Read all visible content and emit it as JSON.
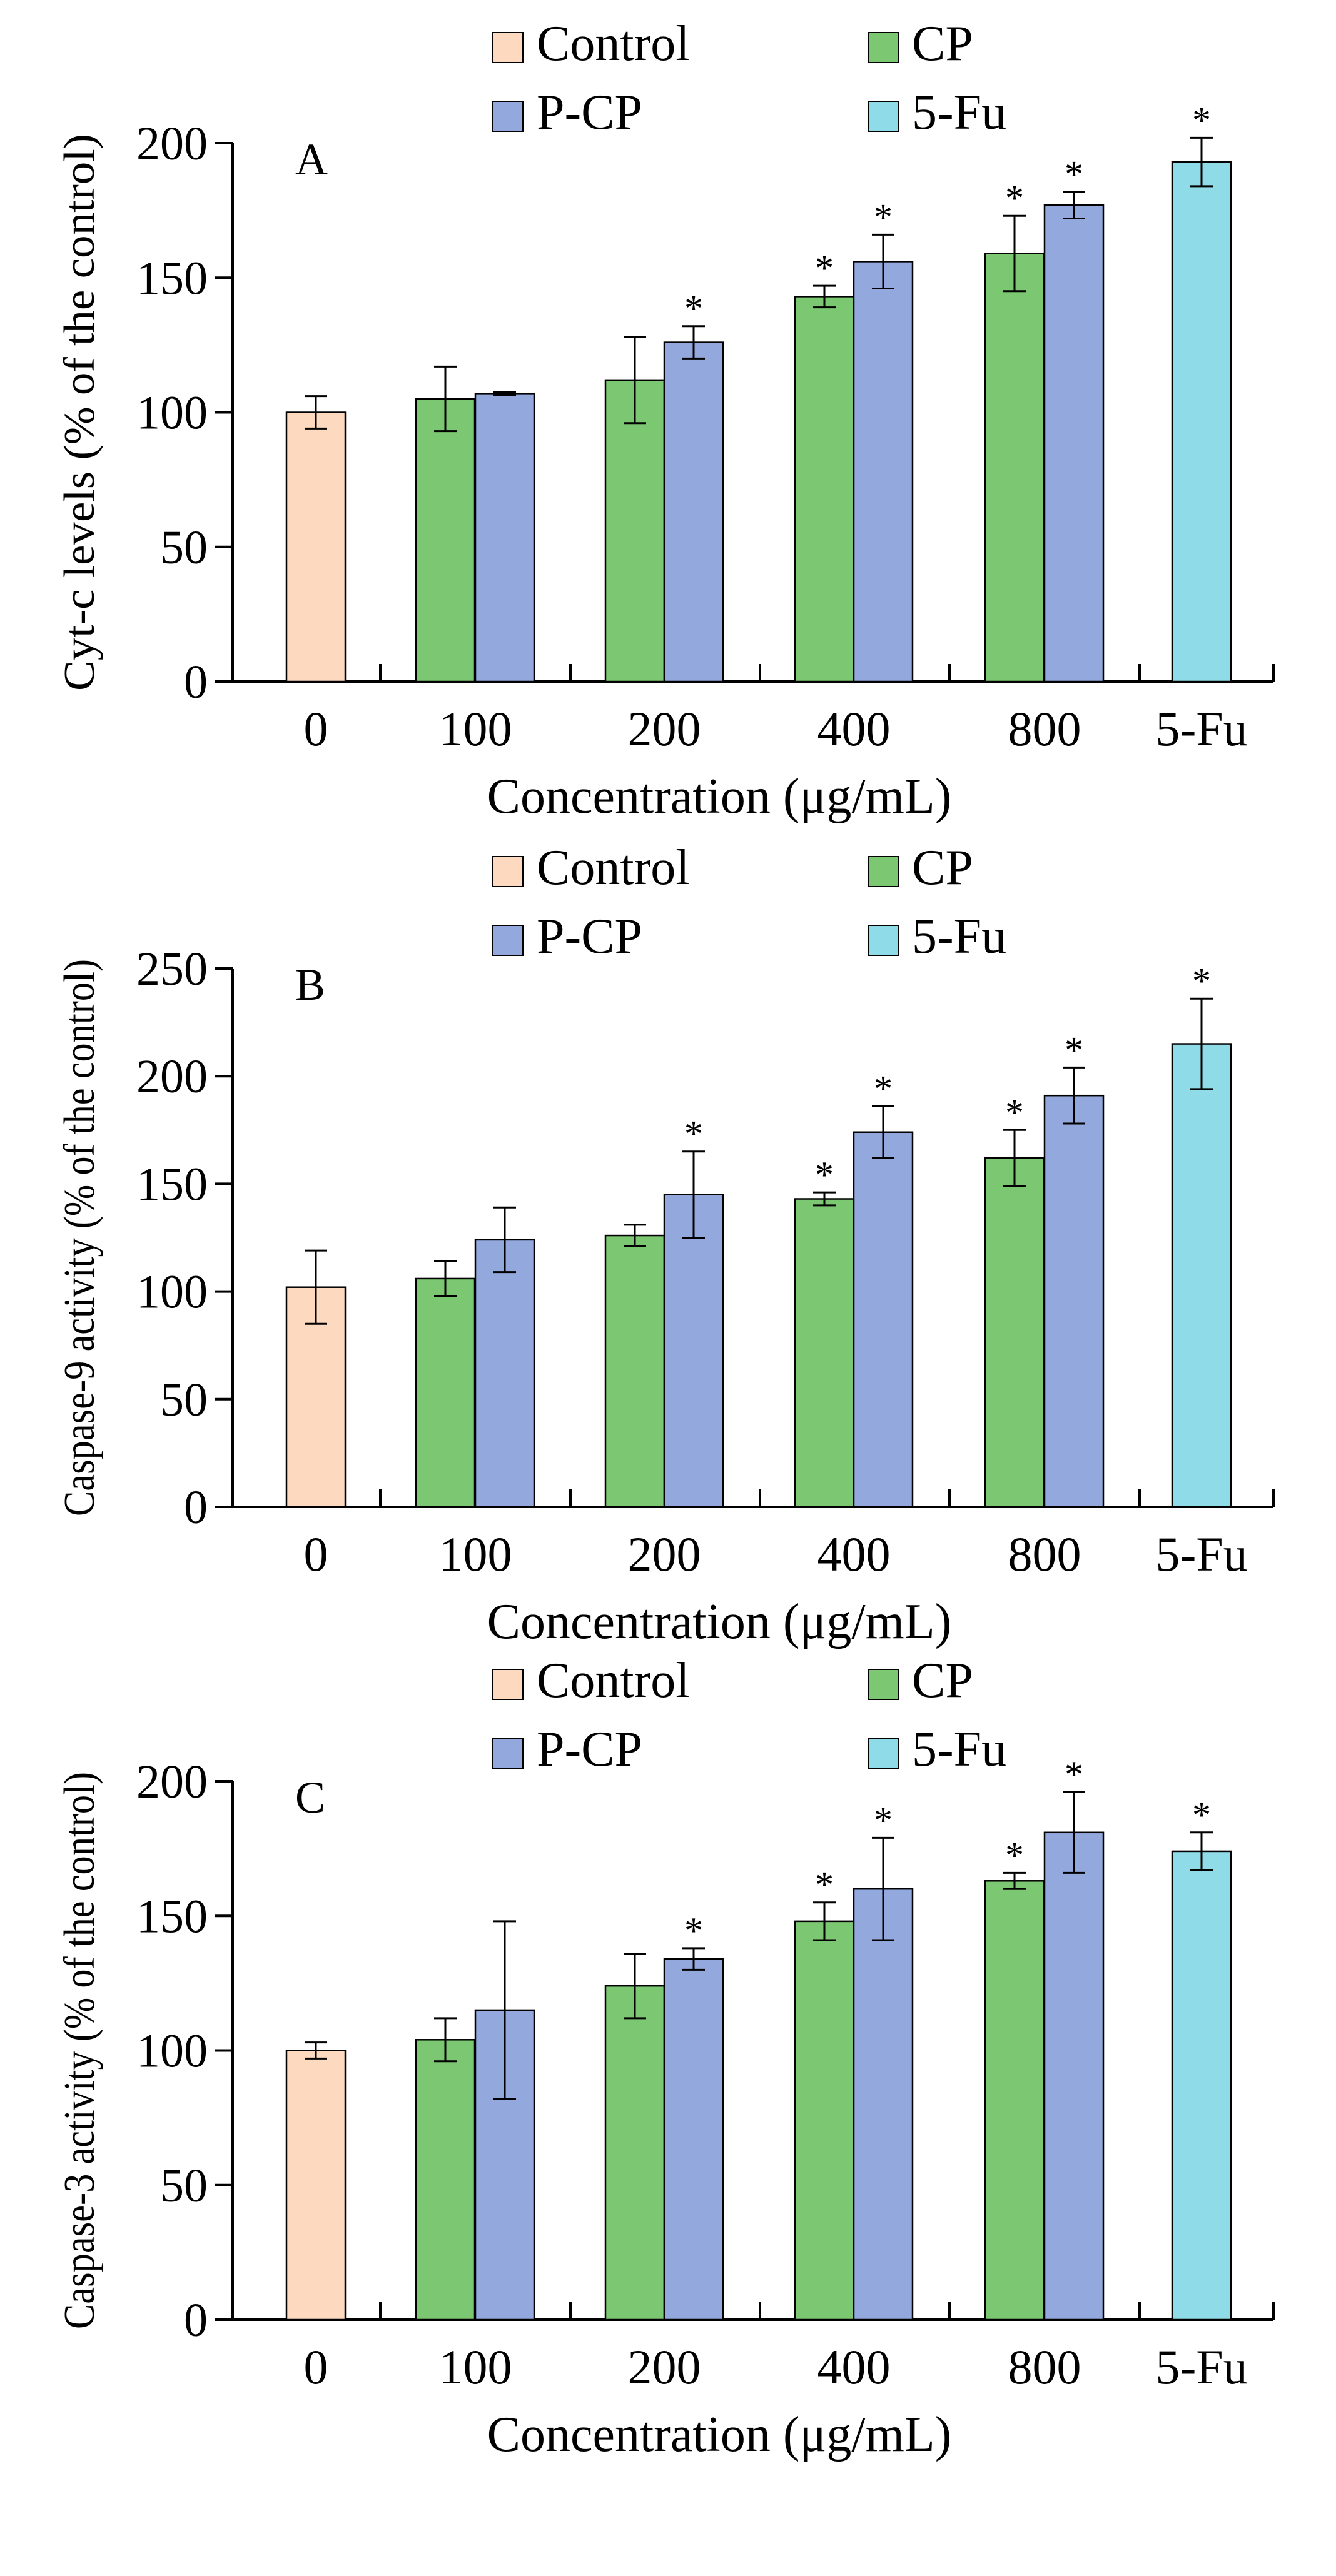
{
  "colors": {
    "Control": "#FDD9BF",
    "CP": "#7CC771",
    "P-CP": "#93A9DE",
    "5-Fu": "#8FDBE8",
    "axis": "#000000"
  },
  "legend": {
    "items": [
      {
        "name": "Control",
        "icon": "square-swatch"
      },
      {
        "name": "CP",
        "icon": "square-swatch"
      },
      {
        "name": "P-CP",
        "icon": "square-swatch"
      },
      {
        "name": "5-Fu",
        "icon": "square-swatch"
      }
    ]
  },
  "chart_data": [
    {
      "panel": "A",
      "type": "bar",
      "title": "",
      "xlabel": "Concentration (μg/mL)",
      "ylabel": "Cyt-c levels (% of the control)",
      "ylim": [
        0,
        200
      ],
      "yticks": [
        0,
        50,
        100,
        150,
        200
      ],
      "categories": [
        "0",
        "100",
        "200",
        "400",
        "800",
        "5-Fu"
      ],
      "bars": [
        {
          "series": "Control",
          "category": "0",
          "value": 100,
          "err": 6,
          "sig": false
        },
        {
          "series": "CP",
          "category": "100",
          "value": 105,
          "err": 12,
          "sig": false
        },
        {
          "series": "P-CP",
          "category": "100",
          "value": 107,
          "err": 0.5,
          "sig": false
        },
        {
          "series": "CP",
          "category": "200",
          "value": 112,
          "err": 16,
          "sig": false
        },
        {
          "series": "P-CP",
          "category": "200",
          "value": 126,
          "err": 6,
          "sig": true
        },
        {
          "series": "CP",
          "category": "400",
          "value": 143,
          "err": 4,
          "sig": true
        },
        {
          "series": "P-CP",
          "category": "400",
          "value": 156,
          "err": 10,
          "sig": true
        },
        {
          "series": "CP",
          "category": "800",
          "value": 159,
          "err": 14,
          "sig": true
        },
        {
          "series": "P-CP",
          "category": "800",
          "value": 177,
          "err": 5,
          "sig": true
        },
        {
          "series": "5-Fu",
          "category": "5-Fu",
          "value": 193,
          "err": 9,
          "sig": true
        }
      ]
    },
    {
      "panel": "B",
      "type": "bar",
      "title": "",
      "xlabel": "Concentration (μg/mL)",
      "ylabel": "Caspase-9 activity (% of the control)",
      "ylim": [
        0,
        250
      ],
      "yticks": [
        0,
        50,
        100,
        150,
        200,
        250
      ],
      "categories": [
        "0",
        "100",
        "200",
        "400",
        "800",
        "5-Fu"
      ],
      "bars": [
        {
          "series": "Control",
          "category": "0",
          "value": 102,
          "err": 17,
          "sig": false
        },
        {
          "series": "CP",
          "category": "100",
          "value": 106,
          "err": 8,
          "sig": false
        },
        {
          "series": "P-CP",
          "category": "100",
          "value": 124,
          "err": 15,
          "sig": false
        },
        {
          "series": "CP",
          "category": "200",
          "value": 126,
          "err": 5,
          "sig": false
        },
        {
          "series": "P-CP",
          "category": "200",
          "value": 145,
          "err": 20,
          "sig": true
        },
        {
          "series": "CP",
          "category": "400",
          "value": 143,
          "err": 3,
          "sig": true
        },
        {
          "series": "P-CP",
          "category": "400",
          "value": 174,
          "err": 12,
          "sig": true
        },
        {
          "series": "CP",
          "category": "800",
          "value": 162,
          "err": 13,
          "sig": true
        },
        {
          "series": "P-CP",
          "category": "800",
          "value": 191,
          "err": 13,
          "sig": true
        },
        {
          "series": "5-Fu",
          "category": "5-Fu",
          "value": 215,
          "err": 21,
          "sig": true
        }
      ]
    },
    {
      "panel": "C",
      "type": "bar",
      "title": "",
      "xlabel": "Concentration (μg/mL)",
      "ylabel": "Caspase-3 activity (% of the control)",
      "ylim": [
        0,
        200
      ],
      "yticks": [
        0,
        50,
        100,
        150,
        200
      ],
      "categories": [
        "0",
        "100",
        "200",
        "400",
        "800",
        "5-Fu"
      ],
      "bars": [
        {
          "series": "Control",
          "category": "0",
          "value": 100,
          "err": 3,
          "sig": false
        },
        {
          "series": "CP",
          "category": "100",
          "value": 104,
          "err": 8,
          "sig": false
        },
        {
          "series": "P-CP",
          "category": "100",
          "value": 115,
          "err": 33,
          "sig": false
        },
        {
          "series": "CP",
          "category": "200",
          "value": 124,
          "err": 12,
          "sig": false
        },
        {
          "series": "P-CP",
          "category": "200",
          "value": 134,
          "err": 4,
          "sig": true
        },
        {
          "series": "CP",
          "category": "400",
          "value": 148,
          "err": 7,
          "sig": true
        },
        {
          "series": "P-CP",
          "category": "400",
          "value": 160,
          "err": 19,
          "sig": true
        },
        {
          "series": "CP",
          "category": "800",
          "value": 163,
          "err": 3,
          "sig": true
        },
        {
          "series": "P-CP",
          "category": "800",
          "value": 181,
          "err": 15,
          "sig": true
        },
        {
          "series": "5-Fu",
          "category": "5-Fu",
          "value": 174,
          "err": 7,
          "sig": true
        }
      ]
    }
  ],
  "significance_marker": "*"
}
